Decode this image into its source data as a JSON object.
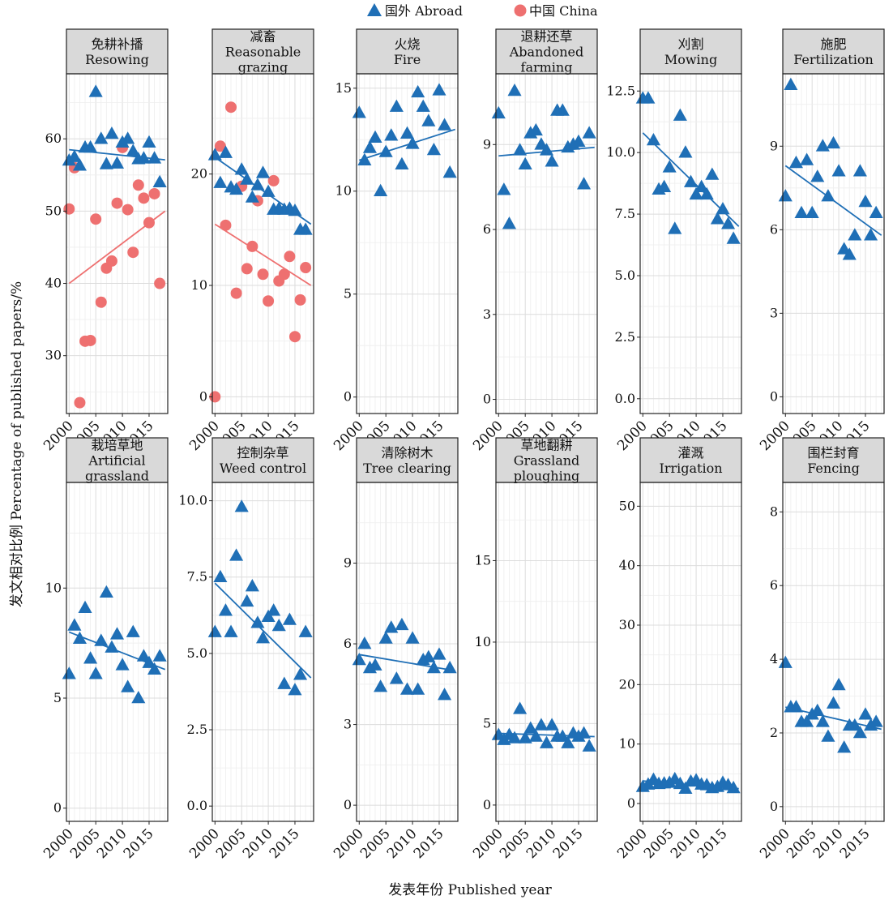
{
  "chart_data": {
    "type": "scatter",
    "legend": {
      "position": "top-center",
      "entries": [
        {
          "name": "国外 Abroad",
          "color": "#1f6fb6",
          "marker": "triangle"
        },
        {
          "name": "中国 China",
          "color": "#ee7070",
          "marker": "circle"
        }
      ]
    },
    "xlabel": "发表年份 Published year",
    "ylabel": "发文相对比例 Percentage of published papers/%",
    "xlim": [
      1999.5,
      2018.5
    ],
    "xticks": [
      2000,
      2005,
      2010,
      2015
    ],
    "colors": {
      "abroad": "#1f6fb6",
      "china": "#ee7070"
    },
    "panels": [
      {
        "title_cn": "免耕补播",
        "title_en": [
          "Resowing"
        ],
        "ylim": [
          22,
          69
        ],
        "yticks": [
          30,
          40,
          50,
          60
        ],
        "abroad": {
          "x": [
            2000,
            2001,
            2002,
            2003,
            2004,
            2005,
            2006,
            2007,
            2008,
            2009,
            2010,
            2011,
            2012,
            2013,
            2014,
            2015,
            2016,
            2017
          ],
          "y": [
            57,
            57.5,
            56.3,
            58.8,
            58.8,
            66.5,
            60,
            56.5,
            60.7,
            56.6,
            59.5,
            60,
            58.3,
            57.2,
            57.3,
            59.5,
            57.3,
            54
          ],
          "fit": [
            58.5,
            57.1
          ]
        },
        "china": {
          "x": [
            2000,
            2001,
            2002,
            2003,
            2004,
            2005,
            2006,
            2007,
            2008,
            2009,
            2010,
            2011,
            2012,
            2013,
            2014,
            2015,
            2016,
            2017
          ],
          "y": [
            50.3,
            56,
            23.5,
            32,
            32.1,
            48.9,
            37.4,
            42.1,
            43.1,
            51.1,
            58.8,
            50.2,
            44.3,
            53.6,
            51.8,
            48.4,
            52.4,
            40
          ],
          "fit": [
            40,
            50
          ]
        }
      },
      {
        "title_cn": "减畜",
        "title_en": [
          "Reasonable",
          "grazing"
        ],
        "ylim": [
          -1.5,
          29
        ],
        "yticks": [
          0,
          10,
          20
        ],
        "abroad": {
          "x": [
            2000,
            2001,
            2002,
            2003,
            2004,
            2005,
            2006,
            2007,
            2008,
            2009,
            2010,
            2011,
            2012,
            2013,
            2014,
            2015,
            2016,
            2017
          ],
          "y": [
            21.7,
            19.2,
            21.9,
            18.8,
            18.6,
            20.4,
            19.5,
            17.9,
            19,
            20.1,
            18.4,
            16.8,
            16.9,
            16.8,
            16.9,
            16.7,
            15,
            15
          ],
          "fit": [
            21.5,
            15.5
          ]
        },
        "china": {
          "x": [
            2000,
            2001,
            2002,
            2003,
            2004,
            2005,
            2006,
            2007,
            2008,
            2009,
            2010,
            2011,
            2012,
            2013,
            2014,
            2015,
            2016,
            2017
          ],
          "y": [
            0,
            22.5,
            15.4,
            26,
            9.3,
            18.9,
            11.5,
            13.5,
            17.6,
            11,
            8.6,
            19.4,
            10.4,
            11,
            12.6,
            5.4,
            8.7,
            11.6
          ],
          "fit": [
            15.5,
            10
          ]
        }
      },
      {
        "title_cn": "火烧",
        "title_en": [
          "Fire"
        ],
        "ylim": [
          -0.8,
          15.7
        ],
        "yticks": [
          0,
          5,
          10,
          15
        ],
        "abroad": {
          "x": [
            2000,
            2001,
            2002,
            2003,
            2004,
            2005,
            2006,
            2007,
            2008,
            2009,
            2010,
            2011,
            2012,
            2013,
            2014,
            2015,
            2016,
            2017
          ],
          "y": [
            13.8,
            11.5,
            12.1,
            12.6,
            10,
            11.9,
            12.7,
            14.1,
            11.3,
            12.8,
            12.3,
            14.8,
            14.1,
            13.4,
            12,
            14.9,
            13.2,
            10.9
          ],
          "fit": [
            11.5,
            13
          ]
        }
      },
      {
        "title_cn": "退耕还草",
        "title_en": [
          "Abandoned",
          "farming"
        ],
        "ylim": [
          -0.5,
          11.5
        ],
        "yticks": [
          0,
          3,
          6,
          9
        ],
        "abroad": {
          "x": [
            2000,
            2001,
            2002,
            2003,
            2004,
            2005,
            2006,
            2007,
            2008,
            2009,
            2010,
            2011,
            2012,
            2013,
            2014,
            2015,
            2016,
            2017
          ],
          "y": [
            10.1,
            7.4,
            6.2,
            10.9,
            8.8,
            8.3,
            9.4,
            9.5,
            9,
            8.8,
            8.4,
            10.2,
            10.2,
            8.9,
            9,
            9.1,
            7.6,
            9.4
          ],
          "fit": [
            8.6,
            8.9
          ]
        }
      },
      {
        "title_cn": "刈割",
        "title_en": [
          "Mowing"
        ],
        "ylim": [
          -0.6,
          13.2
        ],
        "yticks": [
          0.0,
          2.5,
          5.0,
          7.5,
          10.0,
          12.5
        ],
        "abroad": {
          "x": [
            2000,
            2001,
            2002,
            2003,
            2004,
            2005,
            2006,
            2007,
            2008,
            2009,
            2010,
            2011,
            2012,
            2013,
            2014,
            2015,
            2016,
            2017
          ],
          "y": [
            12.2,
            12.2,
            10.5,
            8.5,
            8.6,
            9.4,
            6.9,
            11.5,
            10,
            8.8,
            8.3,
            8.6,
            8.3,
            9.1,
            7.3,
            7.7,
            7.1,
            6.5
          ],
          "fit": [
            10.8,
            7
          ]
        }
      },
      {
        "title_cn": "施肥",
        "title_en": [
          "Fertilization"
        ],
        "ylim": [
          -0.6,
          11.6
        ],
        "yticks": [
          0,
          3,
          6,
          9
        ],
        "abroad": {
          "x": [
            2000,
            2001,
            2002,
            2003,
            2004,
            2005,
            2006,
            2007,
            2008,
            2009,
            2010,
            2011,
            2012,
            2013,
            2014,
            2015,
            2016,
            2017
          ],
          "y": [
            7.2,
            11.2,
            8.4,
            6.6,
            8.5,
            6.6,
            7.9,
            9,
            7.2,
            9.1,
            8.1,
            5.3,
            5.1,
            5.8,
            8.1,
            7,
            5.8,
            6.6
          ],
          "fit": [
            8.3,
            5.8
          ]
        }
      },
      {
        "title_cn": "栽培草地",
        "title_en": [
          "Artificial",
          "grassland"
        ],
        "ylim": [
          -0.6,
          14.8
        ],
        "yticks": [
          0,
          5,
          10
        ],
        "abroad": {
          "x": [
            2000,
            2001,
            2002,
            2003,
            2004,
            2005,
            2006,
            2007,
            2008,
            2009,
            2010,
            2011,
            2012,
            2013,
            2014,
            2015,
            2016,
            2017
          ],
          "y": [
            6.1,
            8.3,
            7.7,
            9.1,
            6.8,
            6.1,
            7.6,
            9.8,
            7.3,
            7.9,
            6.5,
            5.5,
            8,
            5,
            6.9,
            6.6,
            6.3,
            6.9
          ],
          "fit": [
            8,
            6.3
          ]
        }
      },
      {
        "title_cn": "控制杂草",
        "title_en": [
          "Weed control"
        ],
        "ylim": [
          -0.5,
          10.6
        ],
        "yticks": [
          0.0,
          2.5,
          5.0,
          7.5,
          10.0
        ],
        "abroad": {
          "x": [
            2000,
            2001,
            2002,
            2003,
            2004,
            2005,
            2006,
            2007,
            2008,
            2009,
            2010,
            2011,
            2012,
            2013,
            2014,
            2015,
            2016,
            2017
          ],
          "y": [
            5.7,
            7.5,
            6.4,
            5.7,
            8.2,
            9.8,
            6.7,
            7.2,
            6,
            5.5,
            6.2,
            6.4,
            5.9,
            4,
            6.1,
            3.8,
            4.3,
            5.7
          ],
          "fit": [
            7.3,
            4.2
          ]
        }
      },
      {
        "title_cn": "清除树木",
        "title_en": [
          "Tree clearing"
        ],
        "ylim": [
          -0.6,
          12
        ],
        "yticks": [
          0,
          3,
          6,
          9
        ],
        "abroad": {
          "x": [
            2000,
            2001,
            2002,
            2003,
            2004,
            2005,
            2006,
            2007,
            2008,
            2009,
            2010,
            2011,
            2012,
            2013,
            2014,
            2015,
            2016,
            2017
          ],
          "y": [
            5.4,
            6,
            5.1,
            5.2,
            4.4,
            6.2,
            6.6,
            4.7,
            6.7,
            4.3,
            6.2,
            4.3,
            5.4,
            5.5,
            5.1,
            5.6,
            4.1,
            5.1
          ],
          "fit": [
            5.6,
            5
          ]
        }
      },
      {
        "title_cn": "草地翻耕",
        "title_en": [
          "Grassland",
          "ploughing"
        ],
        "ylim": [
          -1,
          19.8
        ],
        "yticks": [
          0,
          5,
          10,
          15
        ],
        "abroad": {
          "x": [
            2000,
            2001,
            2002,
            2003,
            2004,
            2005,
            2006,
            2007,
            2008,
            2009,
            2010,
            2011,
            2012,
            2013,
            2014,
            2015,
            2016,
            2017
          ],
          "y": [
            4.3,
            4,
            4.3,
            4.1,
            5.9,
            4.1,
            4.7,
            4.2,
            4.9,
            3.8,
            4.9,
            4.2,
            4.2,
            3.8,
            4.4,
            4.2,
            4.4,
            3.6
          ],
          "fit": [
            4.4,
            4.2
          ]
        }
      },
      {
        "title_cn": "灌溉",
        "title_en": [
          "Irrigation"
        ],
        "ylim": [
          -3,
          54
        ],
        "yticks": [
          0,
          10,
          20,
          30,
          40,
          50
        ],
        "abroad": {
          "x": [
            2000,
            2001,
            2002,
            2003,
            2004,
            2005,
            2006,
            2007,
            2008,
            2009,
            2010,
            2011,
            2012,
            2013,
            2014,
            2015,
            2016,
            2017
          ],
          "y": [
            2.8,
            3.2,
            4,
            3.3,
            3.4,
            3.5,
            4.1,
            3.3,
            2.5,
            3.7,
            3.9,
            3.2,
            3.1,
            2.6,
            2.8,
            3.5,
            3.1,
            2.6
          ],
          "fit": [
            3.8,
            2.5
          ]
        }
      },
      {
        "title_cn": "围栏封育",
        "title_en": [
          "Fencing"
        ],
        "ylim": [
          -0.4,
          8.8
        ],
        "yticks": [
          0,
          2,
          4,
          6,
          8
        ],
        "abroad": {
          "x": [
            2000,
            2001,
            2002,
            2003,
            2004,
            2005,
            2006,
            2007,
            2008,
            2009,
            2010,
            2011,
            2012,
            2013,
            2014,
            2015,
            2016,
            2017
          ],
          "y": [
            3.9,
            2.7,
            2.7,
            2.3,
            2.3,
            2.5,
            2.6,
            2.3,
            1.9,
            2.8,
            3.3,
            1.6,
            2.2,
            2.2,
            2,
            2.5,
            2.2,
            2.3
          ],
          "fit": [
            2.7,
            2.1
          ]
        }
      }
    ]
  }
}
